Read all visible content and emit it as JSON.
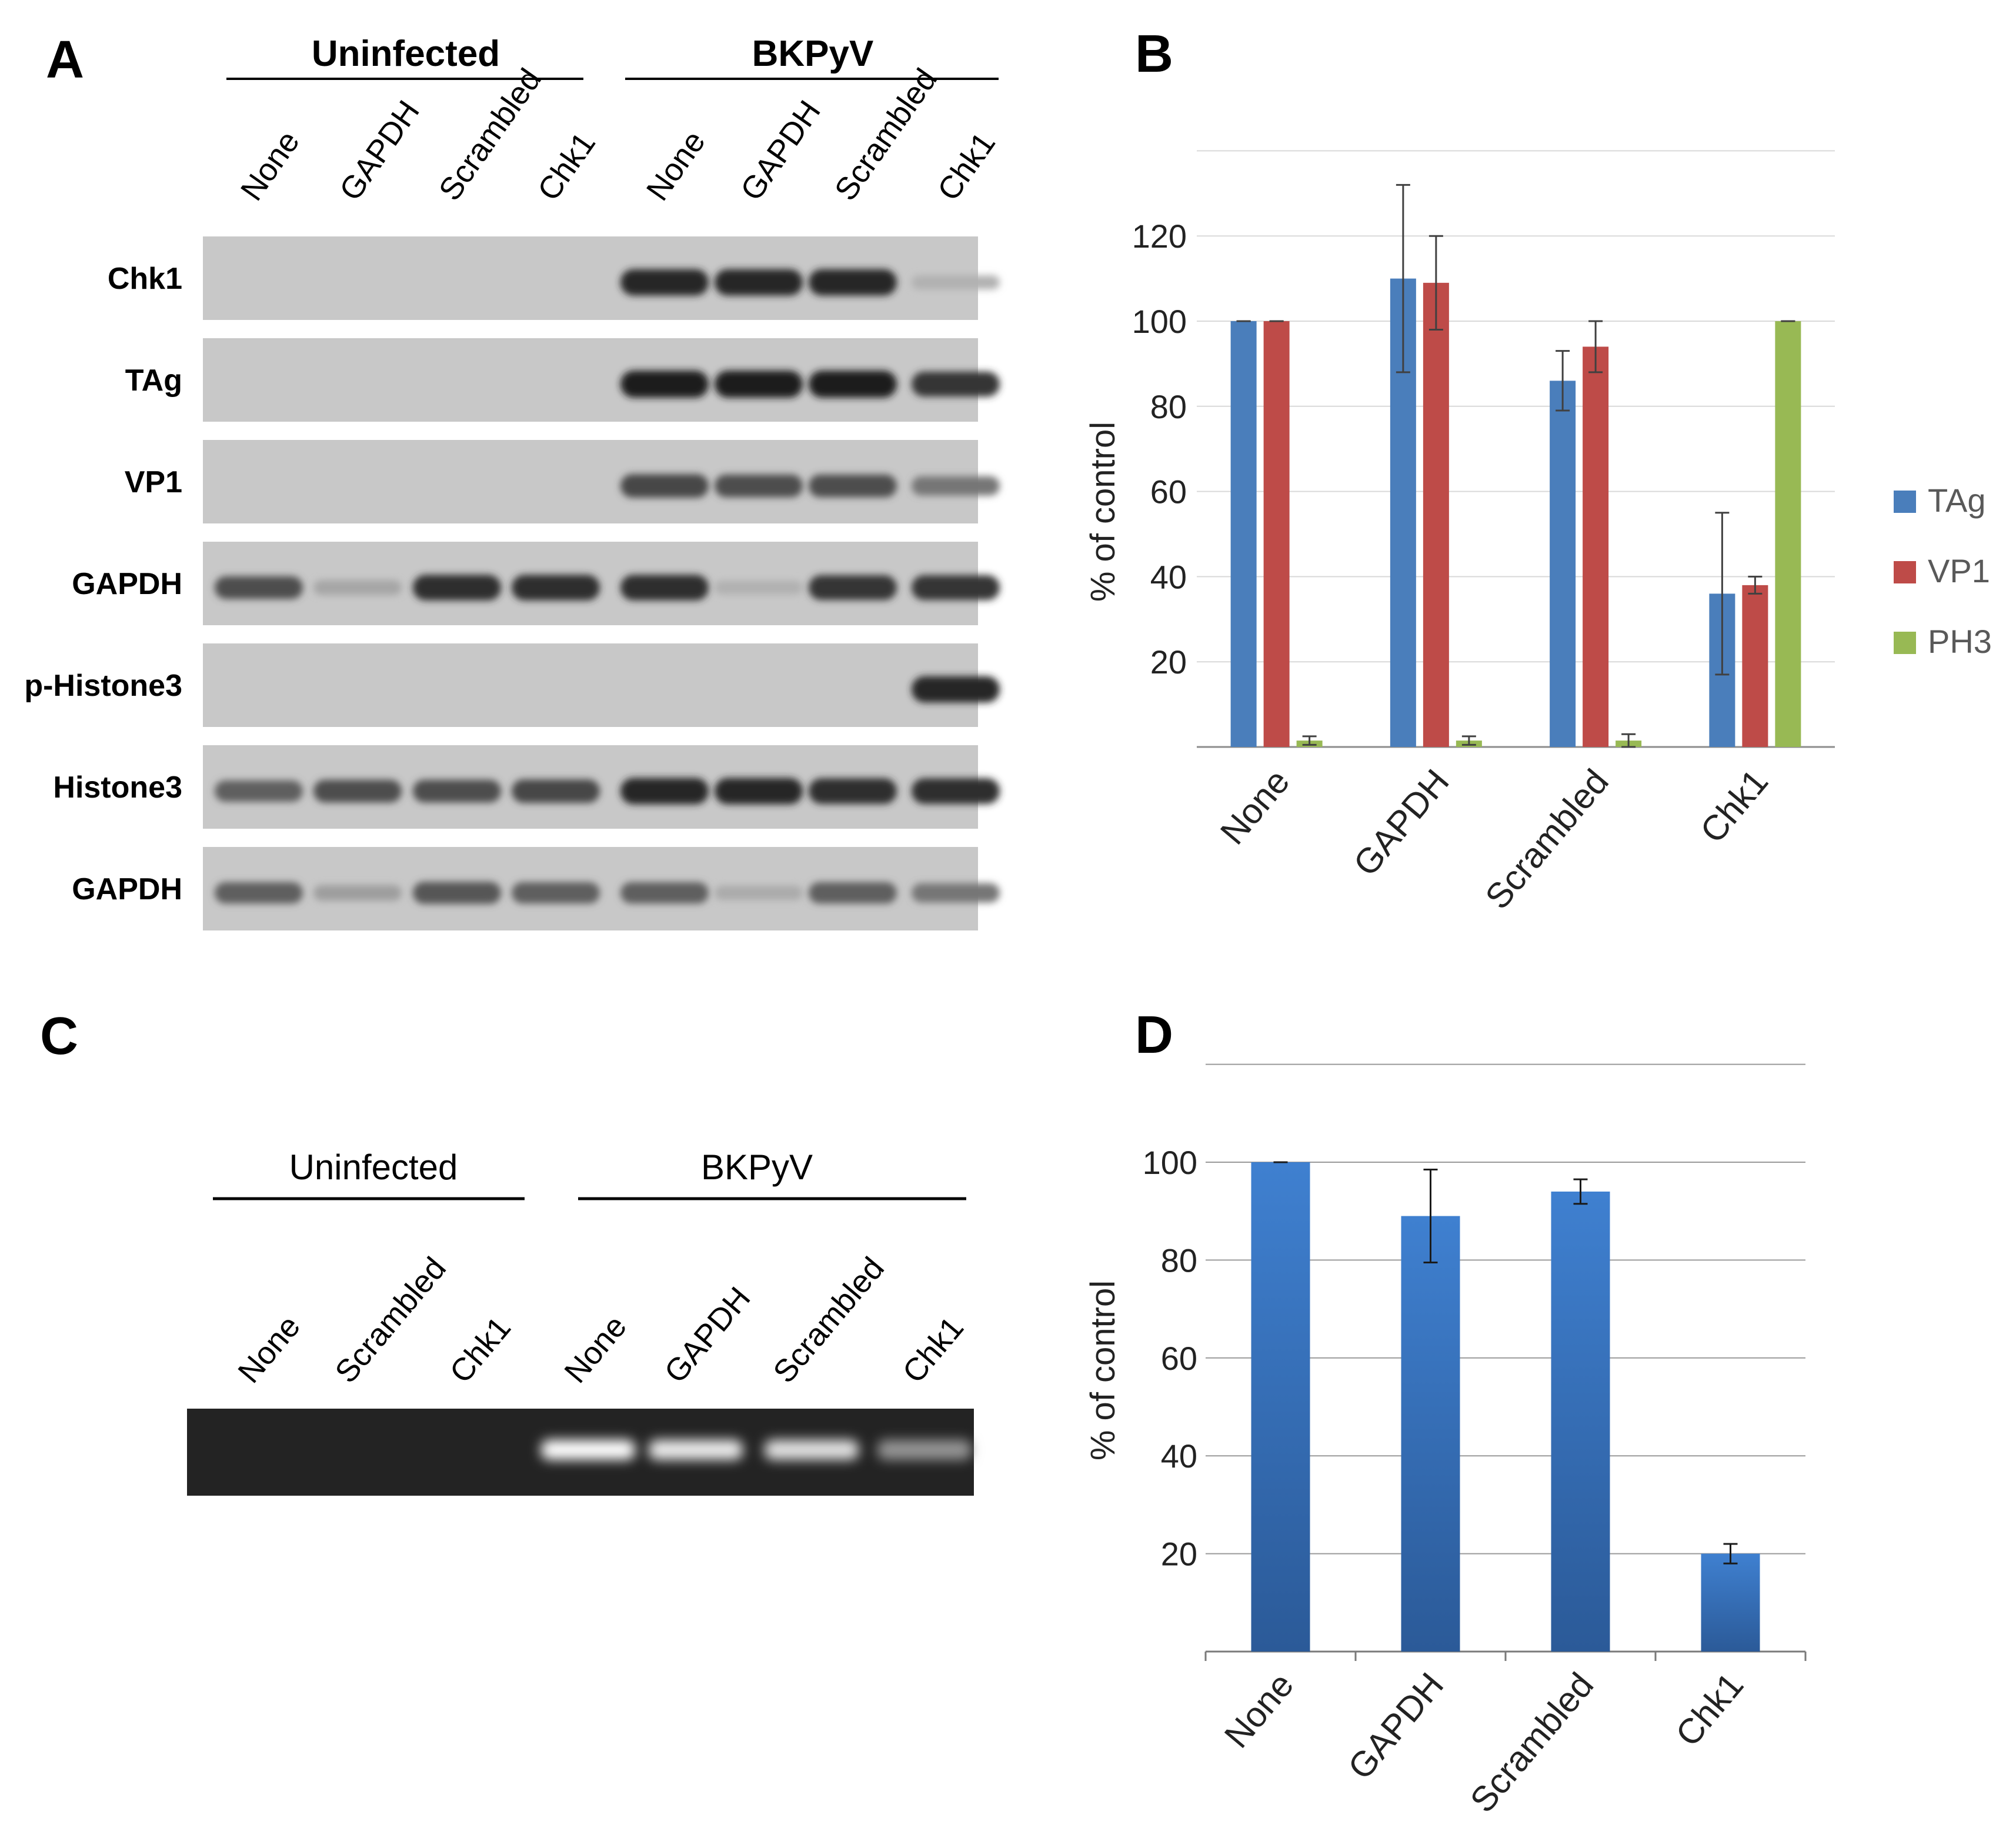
{
  "panels": {
    "a": "A",
    "b": "B",
    "c": "C",
    "d": "D"
  },
  "blot_a": {
    "groups": [
      "Uninfected",
      "BKPyV"
    ],
    "lanes": [
      "None",
      "GAPDH",
      "Scrambled",
      "Chk1",
      "None",
      "GAPDH",
      "Scrambled",
      "Chk1"
    ],
    "rows": [
      {
        "label": "Chk1",
        "intensity": [
          0,
          0,
          0,
          0,
          0.95,
          0.95,
          0.95,
          0.08
        ]
      },
      {
        "label": "TAg",
        "intensity": [
          0,
          0,
          0,
          0,
          1.0,
          1.0,
          1.0,
          0.85
        ]
      },
      {
        "label": "VP1",
        "intensity": [
          0,
          0,
          0,
          0,
          0.75,
          0.7,
          0.7,
          0.45
        ]
      },
      {
        "label": "GAPDH",
        "intensity": [
          0.7,
          0.15,
          0.9,
          0.9,
          0.9,
          0.08,
          0.85,
          0.85
        ]
      },
      {
        "label": "p-Histone3",
        "intensity": [
          0,
          0,
          0,
          0,
          0,
          0,
          0,
          0.95
        ]
      },
      {
        "label": "Histone3",
        "intensity": [
          0.6,
          0.7,
          0.7,
          0.75,
          0.95,
          0.95,
          0.9,
          0.9
        ]
      },
      {
        "label": "GAPDH",
        "intensity": [
          0.6,
          0.2,
          0.65,
          0.6,
          0.6,
          0.12,
          0.6,
          0.45
        ]
      }
    ]
  },
  "gel_c": {
    "groups": [
      "Uninfected",
      "BKPyV"
    ],
    "lanes": [
      "None",
      "Scrambled",
      "Chk1",
      "None",
      "GAPDH",
      "Scrambled",
      "Chk1"
    ],
    "intensity": [
      0,
      0,
      0,
      1.0,
      0.9,
      0.85,
      0.45
    ]
  },
  "chart_data": [
    {
      "type": "bar",
      "ylabel": "% of control",
      "categories": [
        "None",
        "GAPDH",
        "Scrambled",
        "Chk1"
      ],
      "series": [
        {
          "name": "TAg",
          "color": "#4a7ebb",
          "values": [
            100,
            110,
            86,
            36
          ],
          "errors": [
            0,
            22,
            7,
            19
          ]
        },
        {
          "name": "VP1",
          "color": "#be4b48",
          "values": [
            100,
            109,
            94,
            38
          ],
          "errors": [
            0,
            11,
            6,
            2
          ]
        },
        {
          "name": "PH3",
          "color": "#98b954",
          "values": [
            1.5,
            1.5,
            1.5,
            100
          ],
          "errors": [
            1,
            1,
            1.5,
            0
          ]
        }
      ],
      "yticks": [
        20,
        40,
        60,
        80,
        100,
        120
      ],
      "ylim": [
        0,
        140
      ],
      "grid": true,
      "legend": "right"
    },
    {
      "type": "bar",
      "ylabel": "% of control",
      "categories": [
        "None",
        "GAPDH",
        "Scrambled",
        "Chk1"
      ],
      "series": [
        {
          "color": "#3a75c4",
          "values": [
            100,
            89,
            94,
            20
          ],
          "errors": [
            0,
            9.5,
            2.5,
            2
          ]
        }
      ],
      "yticks": [
        20,
        40,
        60,
        80,
        100
      ],
      "ylim": [
        0,
        120
      ],
      "grid": true
    }
  ]
}
